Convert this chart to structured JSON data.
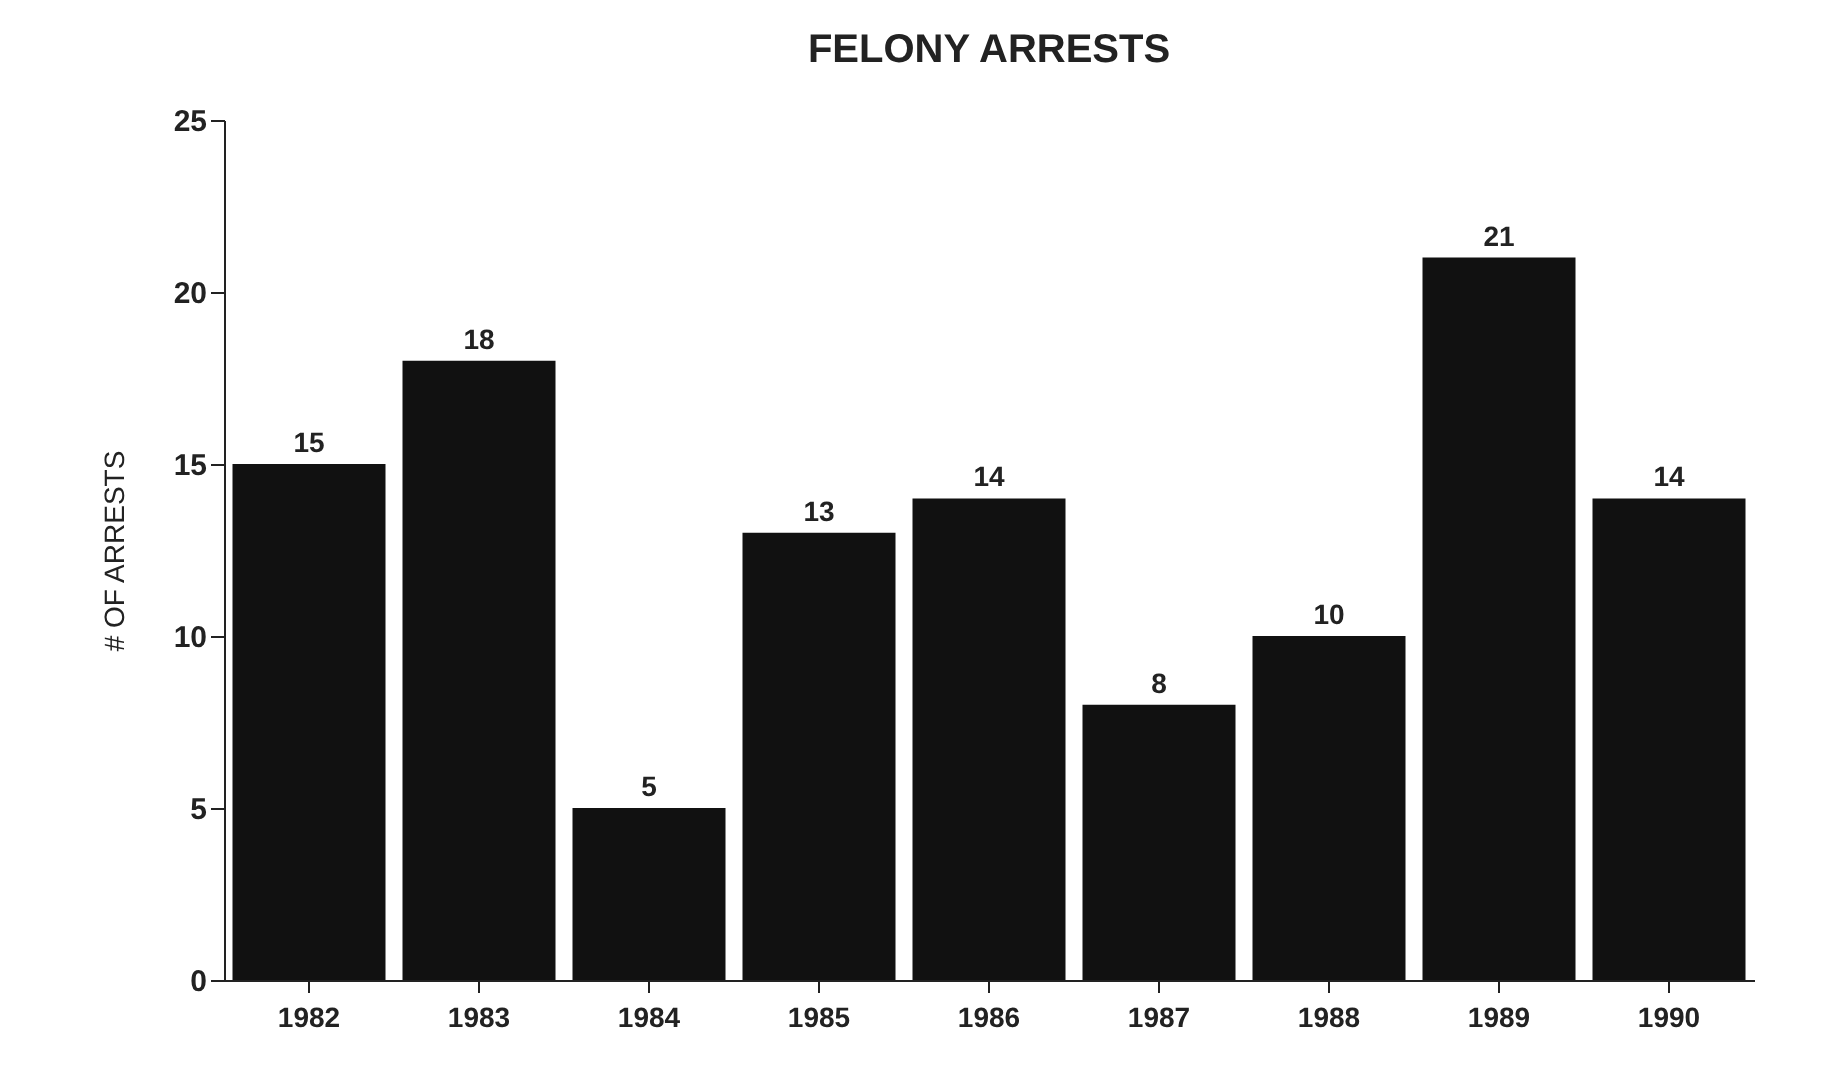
{
  "chart_data": {
    "type": "bar",
    "title": "FELONY ARRESTS",
    "ylabel": "# OF ARRESTS",
    "categories": [
      "1982",
      "1983",
      "1984",
      "1985",
      "1986",
      "1987",
      "1988",
      "1989",
      "1990"
    ],
    "values": [
      15,
      18,
      5,
      13,
      14,
      8,
      10,
      21,
      14
    ],
    "color": "#111111",
    "ylim": [
      0,
      25
    ],
    "yticks": [
      0,
      5,
      10,
      15,
      20,
      25
    ],
    "grid": false,
    "data_labels": true
  }
}
